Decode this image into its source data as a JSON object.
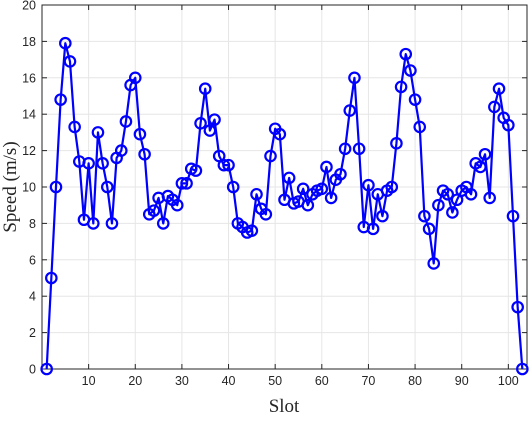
{
  "chart_data": {
    "type": "line",
    "xlabel": "Slot",
    "ylabel": "Speed (m/s)",
    "xlim": [
      0,
      104
    ],
    "ylim": [
      0,
      20
    ],
    "xticks": [
      10,
      20,
      30,
      40,
      50,
      60,
      70,
      80,
      90,
      100
    ],
    "yticks": [
      0,
      2,
      4,
      6,
      8,
      10,
      12,
      14,
      16,
      18,
      20
    ],
    "grid": true,
    "marker": "circle",
    "color": "#0000FF",
    "series": [
      {
        "x": [
          1,
          2,
          3,
          4,
          5,
          6,
          7,
          8,
          9,
          10,
          11,
          12,
          13,
          14,
          15,
          16,
          17,
          18,
          19,
          20,
          21,
          22,
          23,
          24,
          25,
          26,
          27,
          28,
          29,
          30,
          31,
          32,
          33,
          34,
          35,
          36,
          37,
          38,
          39,
          40,
          41,
          42,
          43,
          44,
          45,
          46,
          47,
          48,
          49,
          50,
          51,
          52,
          53,
          54,
          55,
          56,
          57,
          58,
          59,
          60,
          61,
          62,
          63,
          64,
          65,
          66,
          67,
          68,
          69,
          70,
          71,
          72,
          73,
          74,
          75,
          76,
          77,
          78,
          79,
          80,
          81,
          82,
          83,
          84,
          85,
          86,
          87,
          88,
          89,
          90,
          91,
          92,
          93,
          94,
          95,
          96,
          97,
          98,
          99,
          100,
          101,
          102,
          103
        ],
        "values": [
          0,
          5,
          10,
          14.8,
          17.9,
          16.9,
          13.3,
          11.4,
          8.2,
          11.3,
          8,
          13,
          11.3,
          10,
          8,
          11.6,
          12,
          13.6,
          15.6,
          16,
          12.9,
          11.8,
          8.5,
          8.7,
          9.4,
          8,
          9.5,
          9.3,
          9,
          10.2,
          10.2,
          11,
          10.9,
          13.5,
          15.4,
          13.1,
          13.7,
          11.7,
          11.2,
          11.2,
          10,
          8,
          7.8,
          7.5,
          7.6,
          9.6,
          8.8,
          8.5,
          11.7,
          13.2,
          12.9,
          9.3,
          10.5,
          9.1,
          9.2,
          9.9,
          9,
          9.6,
          9.8,
          9.9,
          11.1,
          9.4,
          10.4,
          10.7,
          12.1,
          14.2,
          16,
          12.1,
          7.8,
          10.1,
          7.7,
          9.6,
          8.4,
          9.8,
          10,
          12.4,
          15.5,
          17.3,
          16.4,
          14.8,
          13.3,
          8.4,
          7.7,
          5.8,
          9,
          9.8,
          9.6,
          8.6,
          9.3,
          9.8,
          10,
          9.6,
          11.3,
          11.1,
          11.8,
          9.4,
          14.4,
          15.4,
          13.8,
          13.4,
          8.4,
          3.4,
          0
        ]
      }
    ]
  }
}
